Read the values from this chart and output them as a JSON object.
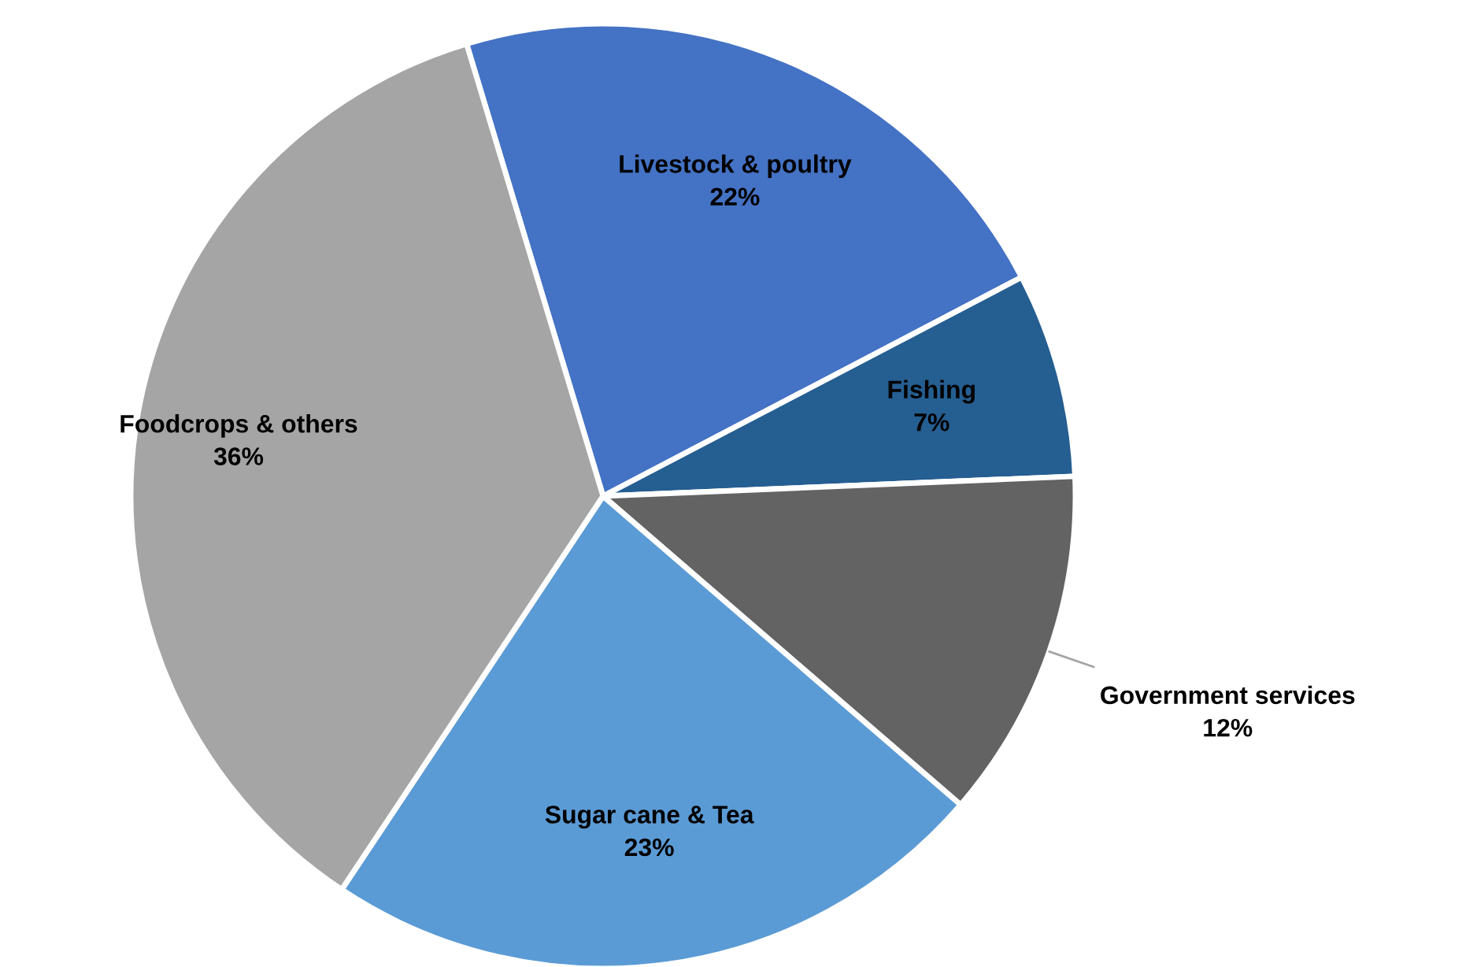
{
  "chart_data": {
    "type": "pie",
    "categories": [
      "Livestock & poultry",
      "Fishing",
      "Government services",
      "Sugar cane & Tea",
      "Foodcrops & others"
    ],
    "values": [
      22,
      7,
      12,
      23,
      36
    ],
    "colors": [
      "#4472c4",
      "#255e91",
      "#636363",
      "#5b9bd5",
      "#a5a5a5"
    ],
    "value_labels": [
      "22%",
      "7%",
      "12%",
      "23%",
      "36%"
    ]
  }
}
